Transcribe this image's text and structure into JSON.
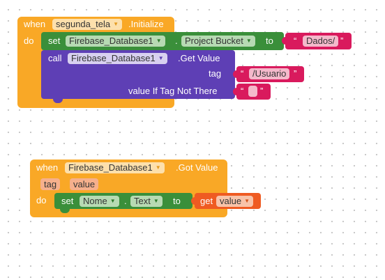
{
  "event1": {
    "keyword_when": "when",
    "component": "segunda_tela",
    "event_name": ".Initialize",
    "keyword_do": "do",
    "set_block": {
      "keyword_set": "set",
      "component": "Firebase_Database1",
      "dot": ".",
      "property": "Project Bucket",
      "keyword_to": "to",
      "open_quote": "“",
      "value": "Dados/",
      "close_quote": "”"
    },
    "call_block": {
      "keyword_call": "call",
      "component": "Firebase_Database1",
      "method": ".Get Value",
      "arg_tag_label": "tag",
      "arg_tag_value": "/Usuario",
      "arg_default_label": "value If Tag Not There",
      "arg_default_value": ""
    }
  },
  "event2": {
    "keyword_when": "when",
    "component": "Firebase_Database1",
    "event_name": ".Got Value",
    "params": [
      "tag",
      "value"
    ],
    "keyword_do": "do",
    "set_block": {
      "keyword_set": "set",
      "component": "Nome",
      "dot": ".",
      "property": "Text",
      "keyword_to": "to"
    },
    "get_block": {
      "keyword_get": "get",
      "variable": "value"
    }
  },
  "colors": {
    "event": "#f9a826",
    "setter": "#3a8f3a",
    "method": "#5e3fb5",
    "text": "#d91a5d",
    "getter": "#ef5b22",
    "workspace_dots": "#c6c6c6"
  },
  "icons": {
    "dropdown": "triangle-down"
  }
}
